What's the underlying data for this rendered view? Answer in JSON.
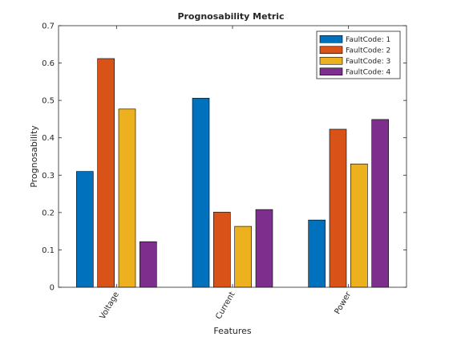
{
  "chart_data": {
    "type": "bar",
    "title": "Prognosability Metric",
    "xlabel": "Features",
    "ylabel": "Prognosability",
    "categories": [
      "Voltage",
      "Current",
      "Power"
    ],
    "ylim": [
      0,
      0.7
    ],
    "yticks": [
      0,
      0.1,
      0.2,
      0.3,
      0.4,
      0.5,
      0.6,
      0.7
    ],
    "grid": false,
    "legend_position": "top-right",
    "series": [
      {
        "name": "FaultCode: 1",
        "color": "#0072BD",
        "values": [
          0.31,
          0.506,
          0.18
        ]
      },
      {
        "name": "FaultCode: 2",
        "color": "#D95319",
        "values": [
          0.612,
          0.201,
          0.423
        ]
      },
      {
        "name": "FaultCode: 3",
        "color": "#EDB120",
        "values": [
          0.477,
          0.163,
          0.33
        ]
      },
      {
        "name": "FaultCode: 4",
        "color": "#7E2F8E",
        "values": [
          0.122,
          0.208,
          0.449
        ]
      }
    ]
  }
}
